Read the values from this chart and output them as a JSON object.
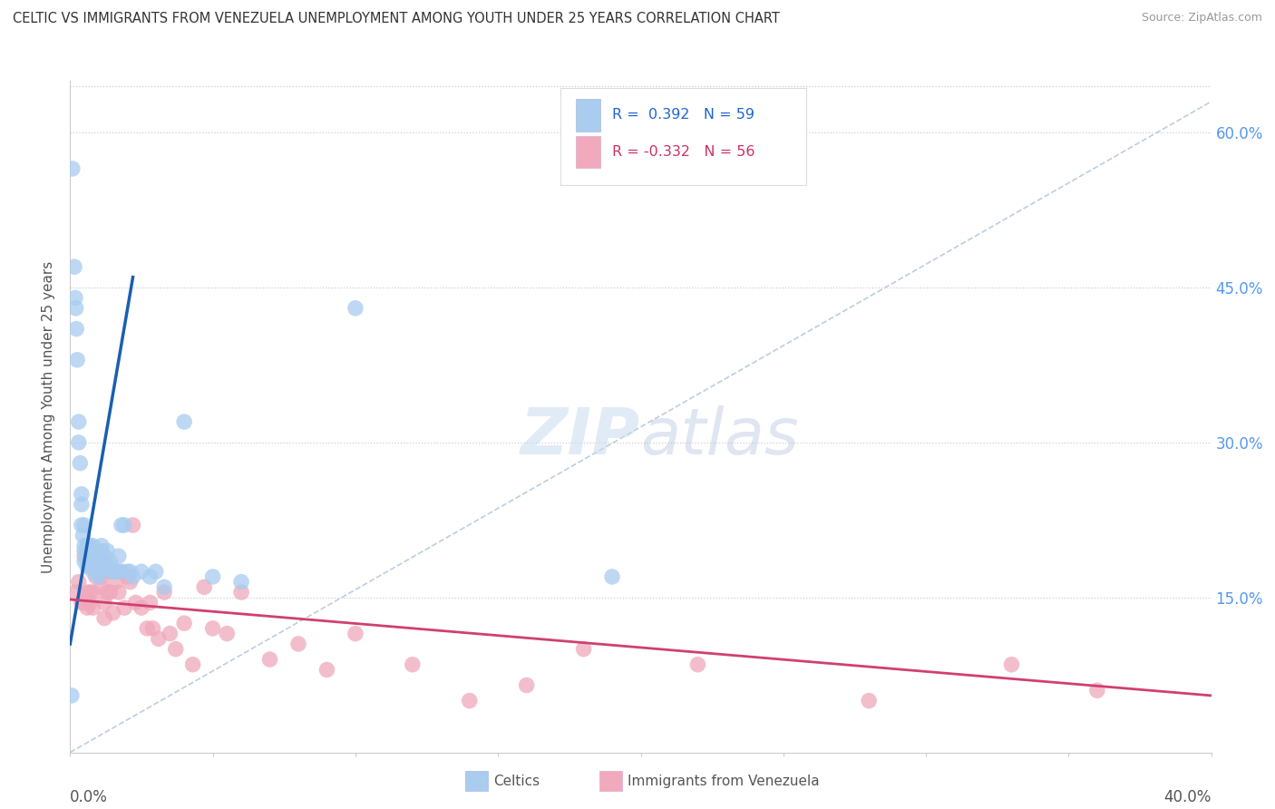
{
  "title": "CELTIC VS IMMIGRANTS FROM VENEZUELA UNEMPLOYMENT AMONG YOUTH UNDER 25 YEARS CORRELATION CHART",
  "source": "Source: ZipAtlas.com",
  "ylabel": "Unemployment Among Youth under 25 years",
  "legend_r1_label": "R =  0.392   N = 59",
  "legend_r2_label": "R = -0.332   N = 56",
  "legend_label1": "Celtics",
  "legend_label2": "Immigrants from Venezuela",
  "blue_scatter_color": "#A8CCF0",
  "pink_scatter_color": "#F0A8BC",
  "blue_line_color": "#1A5FB0",
  "pink_line_color": "#D04070",
  "diagonal_color": "#BCCEDE",
  "legend_blue_fill": "#AACCEE",
  "legend_pink_fill": "#F0AABC",
  "background": "#FFFFFF",
  "right_tick_color": "#5599EE",
  "xmin": 0.0,
  "xmax": 0.4,
  "ymin": 0.0,
  "ymax": 0.65,
  "celtics_x": [
    0.0008,
    0.0015,
    0.0018,
    0.002,
    0.0022,
    0.0025,
    0.003,
    0.003,
    0.0035,
    0.004,
    0.004,
    0.004,
    0.0045,
    0.005,
    0.005,
    0.005,
    0.005,
    0.006,
    0.006,
    0.006,
    0.007,
    0.007,
    0.007,
    0.008,
    0.008,
    0.008,
    0.009,
    0.009,
    0.01,
    0.01,
    0.01,
    0.011,
    0.011,
    0.012,
    0.012,
    0.013,
    0.013,
    0.014,
    0.015,
    0.015,
    0.016,
    0.016,
    0.017,
    0.017,
    0.018,
    0.019,
    0.02,
    0.021,
    0.022,
    0.025,
    0.028,
    0.03,
    0.033,
    0.04,
    0.05,
    0.06,
    0.1,
    0.19,
    0.0005
  ],
  "celtics_y": [
    0.565,
    0.47,
    0.44,
    0.43,
    0.41,
    0.38,
    0.32,
    0.3,
    0.28,
    0.25,
    0.24,
    0.22,
    0.21,
    0.22,
    0.2,
    0.195,
    0.185,
    0.2,
    0.19,
    0.18,
    0.2,
    0.19,
    0.18,
    0.2,
    0.18,
    0.175,
    0.185,
    0.195,
    0.185,
    0.175,
    0.17,
    0.2,
    0.195,
    0.19,
    0.185,
    0.18,
    0.195,
    0.185,
    0.175,
    0.175,
    0.175,
    0.175,
    0.19,
    0.175,
    0.22,
    0.22,
    0.175,
    0.175,
    0.17,
    0.175,
    0.17,
    0.175,
    0.16,
    0.32,
    0.17,
    0.165,
    0.43,
    0.17,
    0.055
  ],
  "venezuela_x": [
    0.002,
    0.003,
    0.004,
    0.005,
    0.005,
    0.006,
    0.006,
    0.007,
    0.007,
    0.008,
    0.008,
    0.009,
    0.009,
    0.01,
    0.011,
    0.011,
    0.012,
    0.012,
    0.013,
    0.013,
    0.014,
    0.015,
    0.016,
    0.017,
    0.018,
    0.019,
    0.02,
    0.021,
    0.022,
    0.023,
    0.025,
    0.027,
    0.028,
    0.029,
    0.031,
    0.033,
    0.035,
    0.037,
    0.04,
    0.043,
    0.047,
    0.05,
    0.055,
    0.06,
    0.07,
    0.08,
    0.09,
    0.1,
    0.12,
    0.14,
    0.16,
    0.18,
    0.22,
    0.28,
    0.33,
    0.36
  ],
  "venezuela_y": [
    0.155,
    0.165,
    0.145,
    0.145,
    0.19,
    0.155,
    0.14,
    0.155,
    0.145,
    0.155,
    0.14,
    0.18,
    0.17,
    0.19,
    0.17,
    0.16,
    0.145,
    0.13,
    0.175,
    0.155,
    0.155,
    0.135,
    0.165,
    0.155,
    0.175,
    0.14,
    0.17,
    0.165,
    0.22,
    0.145,
    0.14,
    0.12,
    0.145,
    0.12,
    0.11,
    0.155,
    0.115,
    0.1,
    0.125,
    0.085,
    0.16,
    0.12,
    0.115,
    0.155,
    0.09,
    0.105,
    0.08,
    0.115,
    0.085,
    0.05,
    0.065,
    0.1,
    0.085,
    0.05,
    0.085,
    0.06
  ],
  "blue_trend_x0": 0.0,
  "blue_trend_x1": 0.022,
  "blue_trend_y0": 0.105,
  "blue_trend_y1": 0.46,
  "pink_trend_x0": 0.0,
  "pink_trend_x1": 0.4,
  "pink_trend_y0": 0.148,
  "pink_trend_y1": 0.055
}
